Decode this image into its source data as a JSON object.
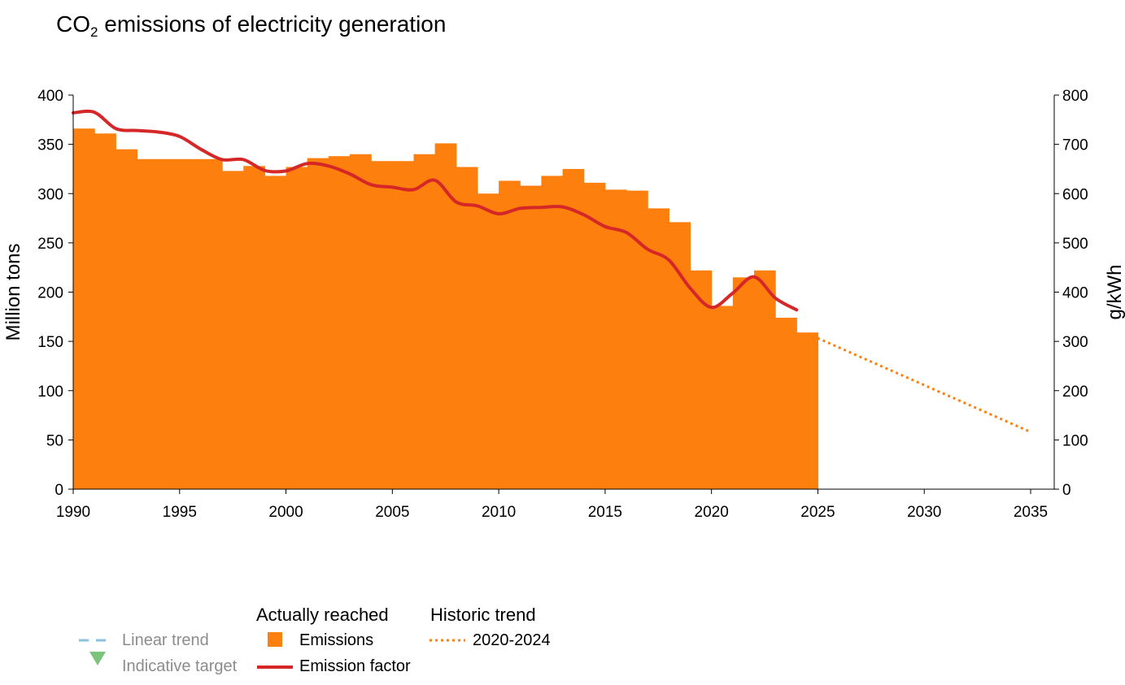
{
  "title_prefix": "CO",
  "title_sub": "2",
  "title_suffix": " emissions of electricity generation",
  "chart_data": {
    "type": "bar",
    "title": "CO2 emissions of electricity generation",
    "xlim": [
      1990,
      2035
    ],
    "x_ticks": [
      "1990",
      "1995",
      "2000",
      "2005",
      "2010",
      "2015",
      "2020",
      "2025",
      "2030",
      "2035"
    ],
    "y_left": {
      "label": "Million tons",
      "lim": [
        0,
        400
      ],
      "ticks": [
        "0",
        "50",
        "100",
        "150",
        "200",
        "250",
        "300",
        "350",
        "400"
      ]
    },
    "y_right": {
      "label": "g/kWh",
      "lim": [
        0,
        800
      ],
      "ticks": [
        "0",
        "100",
        "200",
        "300",
        "400",
        "500",
        "600",
        "700",
        "800"
      ]
    },
    "series": [
      {
        "name": "Emissions",
        "type": "bar",
        "axis": "left",
        "color": "#fd7f0e",
        "x": [
          1990,
          1991,
          1992,
          1993,
          1994,
          1995,
          1996,
          1997,
          1998,
          1999,
          2000,
          2001,
          2002,
          2003,
          2004,
          2005,
          2006,
          2007,
          2008,
          2009,
          2010,
          2011,
          2012,
          2013,
          2014,
          2015,
          2016,
          2017,
          2018,
          2019,
          2020,
          2021,
          2022,
          2023,
          2024
        ],
        "values": [
          366,
          361,
          345,
          335,
          335,
          335,
          335,
          323,
          328,
          318,
          327,
          336,
          338,
          340,
          333,
          333,
          340,
          351,
          327,
          300,
          313,
          308,
          318,
          325,
          311,
          304,
          303,
          285,
          271,
          222,
          186,
          215,
          222,
          174,
          159
        ]
      },
      {
        "name": "Emission factor",
        "type": "line",
        "axis": "right",
        "color": "#d62728",
        "x": [
          1990,
          1991,
          1992,
          1993,
          1994,
          1995,
          1996,
          1997,
          1998,
          1999,
          2000,
          2001,
          2002,
          2003,
          2004,
          2005,
          2006,
          2007,
          2008,
          2009,
          2010,
          2011,
          2012,
          2013,
          2014,
          2015,
          2016,
          2017,
          2018,
          2019,
          2020,
          2021,
          2022,
          2023,
          2024
        ],
        "values": [
          764,
          765,
          732,
          728,
          725,
          716,
          690,
          669,
          669,
          647,
          646,
          661,
          656,
          640,
          618,
          613,
          608,
          627,
          583,
          575,
          559,
          570,
          572,
          573,
          557,
          533,
          521,
          487,
          465,
          408,
          369,
          398,
          431,
          388,
          364
        ]
      },
      {
        "name": "2020-2024",
        "type": "dotted-line",
        "axis": "left",
        "color": "#fd7f0e",
        "x": [
          2024.5,
          2035
        ],
        "values": [
          158,
          58
        ]
      }
    ],
    "legend": {
      "placement": "bottom",
      "groups": [
        {
          "heading": "",
          "items": [
            {
              "label": "Linear trend",
              "symbol": "dashed-line",
              "color": "#8ec1e0",
              "inactive": true
            },
            {
              "label": "Indicative target",
              "symbol": "down-triangle",
              "color": "#7cc37c",
              "inactive": true
            }
          ]
        },
        {
          "heading": "Actually reached",
          "items": [
            {
              "label": "Emissions",
              "symbol": "square",
              "color": "#fd7f0e"
            },
            {
              "label": "Emission factor",
              "symbol": "line",
              "color": "#d62728"
            }
          ]
        },
        {
          "heading": "Historic trend",
          "items": [
            {
              "label": "2020-2024",
              "symbol": "dotted-line",
              "color": "#fd7f0e"
            }
          ]
        }
      ]
    }
  }
}
